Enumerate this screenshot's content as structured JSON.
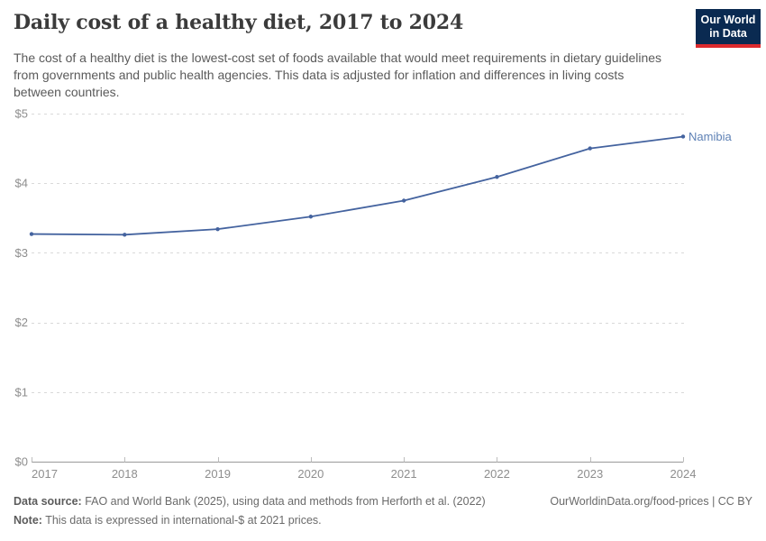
{
  "header": {
    "title": "Daily cost of a healthy diet, 2017 to 2024",
    "logo": {
      "line1": "Our World",
      "line2": "in Data"
    }
  },
  "subtitle": "The cost of a healthy diet is the lowest-cost set of foods available that would meet requirements in dietary guidelines from governments and public health agencies. This data is adjusted for inflation and differences in living costs between countries.",
  "chart_data": {
    "type": "line",
    "title": "Daily cost of a healthy diet, 2017 to 2024",
    "x": [
      2017,
      2018,
      2019,
      2020,
      2021,
      2022,
      2023,
      2024
    ],
    "series": [
      {
        "name": "Namibia",
        "values": [
          3.27,
          3.26,
          3.34,
          3.52,
          3.75,
          4.09,
          4.5,
          4.67
        ]
      }
    ],
    "entity_label": "Namibia",
    "ylim": [
      0,
      5
    ],
    "yticks": [
      0,
      1,
      2,
      3,
      4,
      5
    ],
    "ytick_prefix": "$",
    "grid": "horizontal-dashed",
    "legend_position": "line-end-label",
    "xlabel": "",
    "ylabel": ""
  },
  "colors": {
    "line": "#44639f",
    "entity_label": "#5e81b5",
    "grid": "#d9d9d9",
    "axis": "#9a9a9a",
    "tick": "#bdbdbd",
    "axis_label": "#8e8e8e",
    "title": "#3b3b3b",
    "subtitle": "#5a5a5a",
    "footer_text": "#6a6a6a",
    "logo_background": "#0a2a51",
    "logo_bar": "#dc2a2e"
  },
  "footer": {
    "datasource_label": "Data source:",
    "datasource_text": " FAO and World Bank (2025), using data and methods from Herforth et al. (2022)",
    "note_label": "Note:",
    "note_text": " This data is expressed in international-$ at 2021 prices.",
    "license": "OurWorldinData.org/food-prices | CC BY"
  }
}
